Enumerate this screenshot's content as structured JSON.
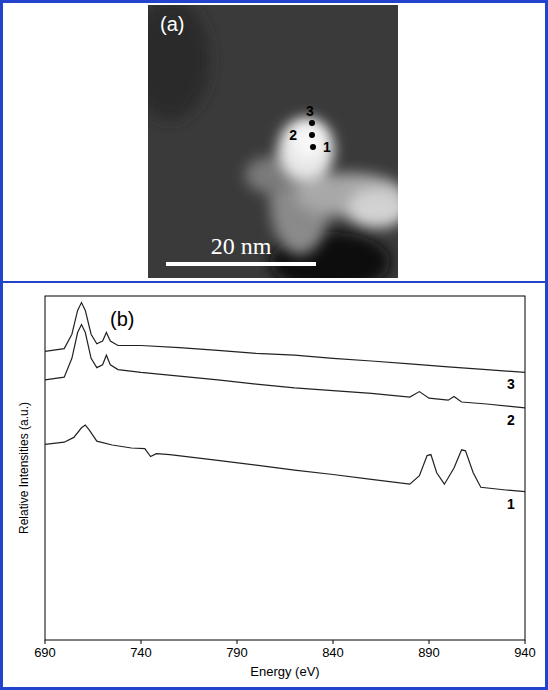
{
  "image": {
    "panel": "(a)",
    "scale_bar": "20 nm",
    "points": [
      {
        "label": "3"
      },
      {
        "label": "2"
      },
      {
        "label": "1"
      }
    ]
  },
  "chart_data": {
    "type": "line",
    "panel": "(b)",
    "x_label": "Energy (eV)",
    "y_label": "Relative Intensities (a.u.)",
    "xlim": [
      690,
      940
    ],
    "xticks": [
      690,
      740,
      790,
      840,
      890,
      940
    ],
    "ylim": [
      0,
      100
    ],
    "tick_labels": "x",
    "series": [
      {
        "name": "1",
        "color": "#222222",
        "x": [
          690,
          700,
          705,
          709,
          711,
          713,
          717,
          725,
          735,
          742,
          745,
          748,
          755,
          780,
          800,
          820,
          840,
          860,
          880,
          885,
          889,
          891,
          894,
          898,
          903,
          907,
          909,
          913,
          917,
          930,
          940
        ],
        "values": [
          56.9,
          57.5,
          58.9,
          61.7,
          62.5,
          61.1,
          57.8,
          56.7,
          55.8,
          55.6,
          53.3,
          54.2,
          53.9,
          52.2,
          50.8,
          49.4,
          48.1,
          46.7,
          45.3,
          47.8,
          53.6,
          53.9,
          48.6,
          45.3,
          50.0,
          55.3,
          55.0,
          48.6,
          44.4,
          43.6,
          43.1
        ]
      },
      {
        "name": "2",
        "color": "#222222",
        "x": [
          690,
          700,
          704,
          707,
          709,
          711,
          714,
          717,
          720,
          722,
          724,
          728,
          740,
          760,
          780,
          800,
          820,
          840,
          860,
          880,
          885,
          890,
          900,
          903,
          907,
          920,
          940
        ],
        "values": [
          75.6,
          76.4,
          81.9,
          89.4,
          91.7,
          89.4,
          81.9,
          79.2,
          80.0,
          82.8,
          80.0,
          78.6,
          77.8,
          76.7,
          75.6,
          74.4,
          73.3,
          72.5,
          71.7,
          70.6,
          72.2,
          70.3,
          69.7,
          70.8,
          69.2,
          68.6,
          67.5
        ]
      },
      {
        "name": "3",
        "color": "#222222",
        "x": [
          690,
          700,
          704,
          707,
          709,
          711,
          714,
          717,
          720,
          722,
          724,
          728,
          740,
          760,
          780,
          800,
          820,
          840,
          860,
          880,
          900,
          920,
          940
        ],
        "values": [
          83.9,
          84.7,
          88.9,
          95.8,
          98.1,
          95.8,
          88.9,
          86.1,
          86.9,
          89.4,
          86.9,
          85.6,
          85.6,
          85.0,
          84.2,
          83.3,
          82.8,
          81.9,
          81.1,
          80.3,
          79.4,
          78.6,
          77.8
        ]
      }
    ]
  }
}
